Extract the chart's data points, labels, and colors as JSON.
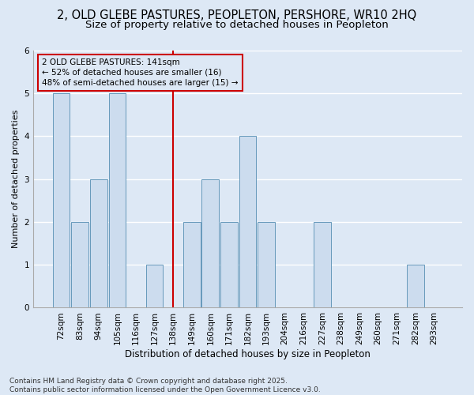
{
  "title_line1": "2, OLD GLEBE PASTURES, PEOPLETON, PERSHORE, WR10 2HQ",
  "title_line2": "Size of property relative to detached houses in Peopleton",
  "xlabel": "Distribution of detached houses by size in Peopleton",
  "ylabel": "Number of detached properties",
  "categories": [
    "72sqm",
    "83sqm",
    "94sqm",
    "105sqm",
    "116sqm",
    "127sqm",
    "138sqm",
    "149sqm",
    "160sqm",
    "171sqm",
    "182sqm",
    "193sqm",
    "204sqm",
    "216sqm",
    "227sqm",
    "238sqm",
    "249sqm",
    "260sqm",
    "271sqm",
    "282sqm",
    "293sqm"
  ],
  "values": [
    5,
    2,
    3,
    5,
    0,
    1,
    0,
    2,
    3,
    2,
    4,
    2,
    0,
    0,
    2,
    0,
    0,
    0,
    0,
    1,
    0
  ],
  "bar_color": "#ccdcee",
  "bar_edge_color": "#6699bb",
  "reference_line_index": 6,
  "reference_line_color": "#cc0000",
  "annotation_text": "2 OLD GLEBE PASTURES: 141sqm\n← 52% of detached houses are smaller (16)\n48% of semi-detached houses are larger (15) →",
  "annotation_box_color": "#cc0000",
  "ylim": [
    0,
    6
  ],
  "yticks": [
    0,
    1,
    2,
    3,
    4,
    5,
    6
  ],
  "fig_background_color": "#dde8f5",
  "plot_background_color": "#dde8f5",
  "grid_color": "#ffffff",
  "footnote": "Contains HM Land Registry data © Crown copyright and database right 2025.\nContains public sector information licensed under the Open Government Licence v3.0.",
  "title_fontsize": 10.5,
  "subtitle_fontsize": 9.5,
  "annotation_fontsize": 7.5,
  "footnote_fontsize": 6.5,
  "xlabel_fontsize": 8.5,
  "ylabel_fontsize": 8,
  "tick_fontsize": 7.5
}
